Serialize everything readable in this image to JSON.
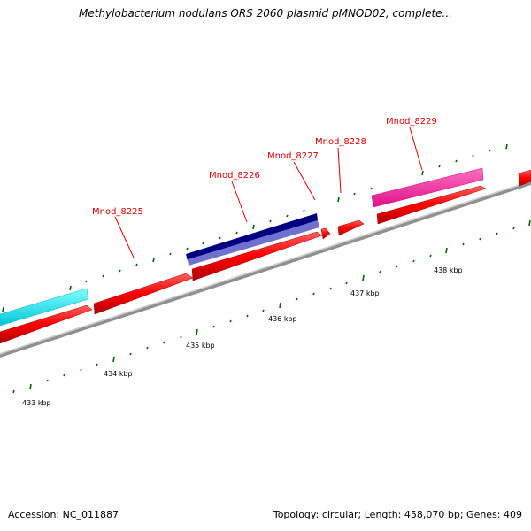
{
  "title": "Methylobacterium nodulans ORS 2060 plasmid pMNOD02, complete...",
  "footer": {
    "accession": "Accession: NC_011887",
    "summary": "Topology: circular; Length: 458,070 bp; Genes: 409"
  },
  "colors": {
    "cds_forward": "#ff0000",
    "cds_upper": "#ff2020",
    "feature_cyan": "#00e5ee",
    "feature_navy": "#000080",
    "feature_navy_light": "#7070d0",
    "feature_pink": "#ff1493",
    "backbone": "#808080",
    "ticks": "#006400",
    "label": "#e00000"
  },
  "genes": [
    {
      "label": "Mnod_8225"
    },
    {
      "label": "Mnod_8226"
    },
    {
      "label": "Mnod_8227"
    },
    {
      "label": "Mnod_8228"
    },
    {
      "label": "Mnod_8229"
    }
  ],
  "scale": [
    {
      "label": "433 kbp"
    },
    {
      "label": "434 kbp"
    },
    {
      "label": "435 kbp"
    },
    {
      "label": "436 kbp"
    },
    {
      "label": "437 kbp"
    },
    {
      "label": "438 kbp"
    }
  ]
}
